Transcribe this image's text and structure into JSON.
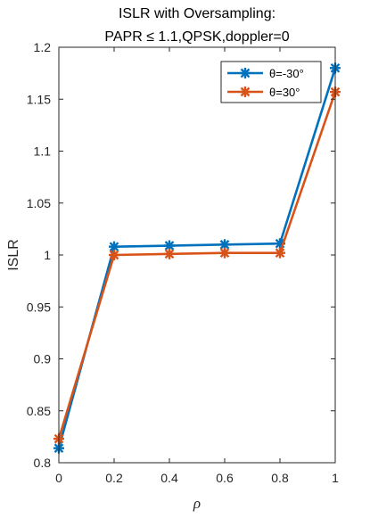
{
  "chart_data": {
    "type": "line",
    "title": [
      "ISLR with Oversampling:",
      "PAPR ≤ 1.1,QPSK,doppler=0"
    ],
    "xlabel": "ρ",
    "ylabel": "ISLR",
    "x": [
      0,
      0.2,
      0.4,
      0.6,
      0.8,
      1
    ],
    "xlim": [
      0,
      1
    ],
    "ylim": [
      0.8,
      1.2
    ],
    "xticks": [
      0,
      0.2,
      0.4,
      0.6,
      0.8,
      1
    ],
    "xtick_labels": [
      "0",
      "0.2",
      "0.4",
      "0.6",
      "0.8",
      "1"
    ],
    "yticks": [
      0.8,
      0.85,
      0.9,
      0.95,
      1,
      1.05,
      1.1,
      1.15,
      1.2
    ],
    "ytick_labels": [
      "0.8",
      "0.85",
      "0.9",
      "0.95",
      "1",
      "1.05",
      "1.1",
      "1.15",
      "1.2"
    ],
    "grid": false,
    "legend_position": "top-right",
    "series": [
      {
        "name": "θ=-30°",
        "color": "#0072BD",
        "marker": "asterisk",
        "values": [
          0.814,
          1.008,
          1.009,
          1.01,
          1.011,
          1.18
        ]
      },
      {
        "name": "θ=30°",
        "color": "#D95319",
        "marker": "asterisk",
        "values": [
          0.823,
          1.0,
          1.001,
          1.002,
          1.002,
          1.157
        ]
      }
    ]
  }
}
